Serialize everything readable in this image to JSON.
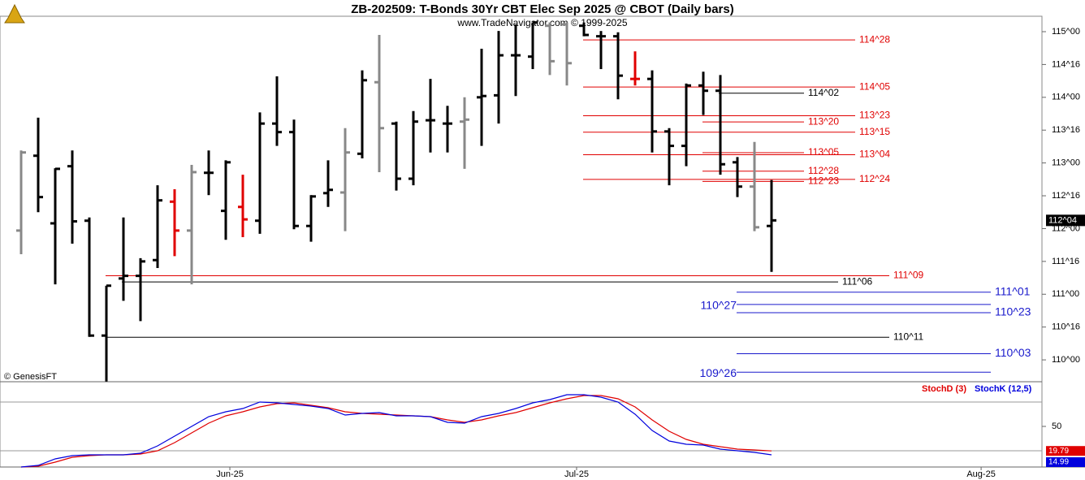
{
  "chart_data": [
    {
      "type": "ohlc",
      "title": "ZB-202509:  T-Bonds 30Yr CBT Elec Sep 2025 @ CBOT  (Daily bars)",
      "subtitle": "www.TradeNavigator.com © 1999-2025",
      "copyright": "© GenesisFT",
      "xlim": [
        -1.238,
        59.857
      ],
      "ylim": [
        109.667,
        115.136
      ],
      "yticks": [
        {
          "value": 115,
          "label": "115^00"
        },
        {
          "value": 114.5,
          "label": "114^16"
        },
        {
          "value": 114,
          "label": "114^00"
        },
        {
          "value": 113.5,
          "label": "113^16"
        },
        {
          "value": 113,
          "label": "113^00"
        },
        {
          "value": 112.5,
          "label": "112^16"
        },
        {
          "value": 112,
          "label": "112^00"
        },
        {
          "value": 111.5,
          "label": "111^16"
        },
        {
          "value": 111,
          "label": "111^00"
        },
        {
          "value": 110.5,
          "label": "110^16"
        },
        {
          "value": 110,
          "label": "110^00"
        }
      ],
      "open": [
        111.97,
        113.11,
        112.08,
        112.95,
        112.12,
        110.37,
        111.24,
        111.28,
        111.52,
        112.41,
        111.97,
        112.85,
        112.27,
        112.33,
        112.12,
        113.6,
        113.47,
        112.04,
        112.54,
        112.55,
        113.14,
        114.23,
        113.6,
        112.76,
        113.65,
        113.6,
        113.63,
        114.0,
        114.03,
        114.64,
        114.62,
        115.09,
        115.11,
        115.09,
        114.93,
        114.93,
        114.28,
        114.28,
        113.48,
        113.26,
        114.18,
        114.1,
        113.01,
        112.64,
        112.04
      ],
      "high": [
        113.19,
        113.69,
        112.92,
        113.19,
        112.17,
        111.13,
        112.17,
        111.55,
        112.66,
        112.6,
        112.97,
        113.19,
        113.04,
        112.82,
        113.77,
        114.32,
        113.66,
        112.51,
        113.04,
        113.53,
        114.41,
        114.95,
        113.63,
        113.79,
        114.28,
        113.87,
        114.0,
        114.74,
        115.01,
        115.11,
        115.14,
        115.14,
        115.14,
        115.14,
        115.01,
        114.99,
        114.7,
        114.41,
        113.53,
        114.21,
        114.39,
        114.34,
        113.09,
        113.32,
        112.74
      ],
      "low": [
        111.61,
        112.25,
        111.15,
        111.77,
        110.35,
        109.67,
        110.9,
        110.59,
        111.4,
        111.58,
        111.15,
        112.51,
        111.83,
        111.87,
        111.92,
        113.26,
        111.99,
        111.8,
        112.33,
        111.96,
        113.07,
        112.86,
        112.58,
        112.66,
        113.16,
        113.16,
        112.91,
        113.26,
        113.6,
        114.02,
        114.43,
        114.34,
        114.18,
        114.93,
        114.43,
        113.97,
        114.18,
        113.16,
        112.66,
        112.95,
        113.73,
        112.82,
        112.48,
        111.96,
        111.34
      ],
      "close": [
        113.16,
        112.48,
        112.91,
        112.11,
        110.37,
        111.13,
        111.28,
        111.5,
        112.43,
        111.97,
        112.86,
        112.85,
        113.01,
        112.14,
        113.6,
        113.47,
        112.04,
        112.49,
        112.59,
        113.16,
        114.26,
        113.53,
        112.76,
        113.63,
        113.65,
        113.6,
        113.66,
        114.02,
        114.64,
        114.64,
        115.14,
        114.55,
        114.52,
        114.95,
        114.93,
        114.33,
        114.28,
        113.48,
        113.26,
        114.18,
        114.1,
        112.98,
        112.64,
        112.02,
        112.125
      ],
      "colors": [
        "#888888",
        "#000000",
        "#000000",
        "#000000",
        "#000000",
        "#000000",
        "#000000",
        "#000000",
        "#000000",
        "#e00000",
        "#888888",
        "#000000",
        "#000000",
        "#e00000",
        "#000000",
        "#000000",
        "#000000",
        "#000000",
        "#000000",
        "#888888",
        "#000000",
        "#888888",
        "#000000",
        "#000000",
        "#000000",
        "#000000",
        "#888888",
        "#000000",
        "#000000",
        "#000000",
        "#000000",
        "#888888",
        "#888888",
        "#000000",
        "#000000",
        "#000000",
        "#e00000",
        "#000000",
        "#000000",
        "#000000",
        "#000000",
        "#000000",
        "#000000",
        "#888888",
        "#000000"
      ],
      "last_price": {
        "value": 112.125,
        "label": "112^04"
      },
      "levels": [
        {
          "value": 114.875,
          "label": "114^28",
          "color": "#e00000"
        },
        {
          "value": 114.15625,
          "label": "114^05",
          "color": "#e00000"
        },
        {
          "value": 114.0625,
          "label": "114^02",
          "color": "#000000"
        },
        {
          "value": 113.71875,
          "label": "113^23",
          "color": "#e00000"
        },
        {
          "value": 113.625,
          "label": "113^20",
          "color": "#e00000"
        },
        {
          "value": 113.46875,
          "label": "113^15",
          "color": "#e00000"
        },
        {
          "value": 113.15625,
          "label": "113^05",
          "color": "#e00000"
        },
        {
          "value": 113.125,
          "label": "113^04",
          "color": "#e00000"
        },
        {
          "value": 112.875,
          "label": "112^28",
          "color": "#e00000"
        },
        {
          "value": 112.75,
          "label": "112^24",
          "color": "#e00000"
        },
        {
          "value": 112.71875,
          "label": "112^23",
          "color": "#e00000"
        },
        {
          "value": 111.28125,
          "label": "111^09",
          "color": "#e00000"
        },
        {
          "value": 111.1875,
          "label": "111^06",
          "color": "#000000"
        },
        {
          "value": 111.03125,
          "label": "111^01",
          "color": "#1a1acc"
        },
        {
          "value": 110.84375,
          "label": "110^27",
          "color": "#1a1acc"
        },
        {
          "value": 110.71875,
          "label": "110^23",
          "color": "#1a1acc"
        },
        {
          "value": 110.34375,
          "label": "110^11",
          "color": "#000000"
        },
        {
          "value": 110.09375,
          "label": "110^03",
          "color": "#1a1acc"
        },
        {
          "value": 109.8125,
          "label": "109^26",
          "color": "#1a1acc"
        }
      ]
    },
    {
      "type": "line",
      "xlim": [
        -1.238,
        59.857
      ],
      "xticks": [
        {
          "value": 12.24,
          "label": "Jun-25"
        },
        {
          "value": 32.57,
          "label": "Jul-25"
        },
        {
          "value": 56.29,
          "label": "Aug-25"
        }
      ],
      "ylim": [
        0,
        100
      ],
      "yticks": [
        50
      ],
      "levels": [
        20,
        80
      ],
      "series": [
        {
          "name": "StochD (3)",
          "color": "#e00000",
          "values": [
            0,
            1,
            6,
            12,
            14,
            15,
            15,
            16,
            20,
            30,
            42,
            54,
            63,
            68,
            74,
            78,
            79,
            76,
            73,
            68,
            66,
            65,
            64,
            63,
            62,
            58,
            55,
            58,
            63,
            67,
            73,
            79,
            84,
            88,
            88,
            84,
            74,
            58,
            44,
            34,
            28,
            25,
            22,
            21,
            19.79
          ]
        },
        {
          "name": "StochK (12,5)",
          "color": "#0000dd",
          "values": [
            0,
            2,
            10,
            14,
            15,
            15,
            15,
            17,
            26,
            38,
            50,
            62,
            68,
            72,
            80,
            79,
            77,
            75,
            72,
            64,
            66,
            67,
            63,
            63,
            62,
            55,
            54,
            62,
            66,
            72,
            79,
            83,
            89,
            89,
            86,
            80,
            65,
            45,
            32,
            28,
            27,
            22,
            20,
            18,
            14.99
          ]
        }
      ]
    }
  ]
}
